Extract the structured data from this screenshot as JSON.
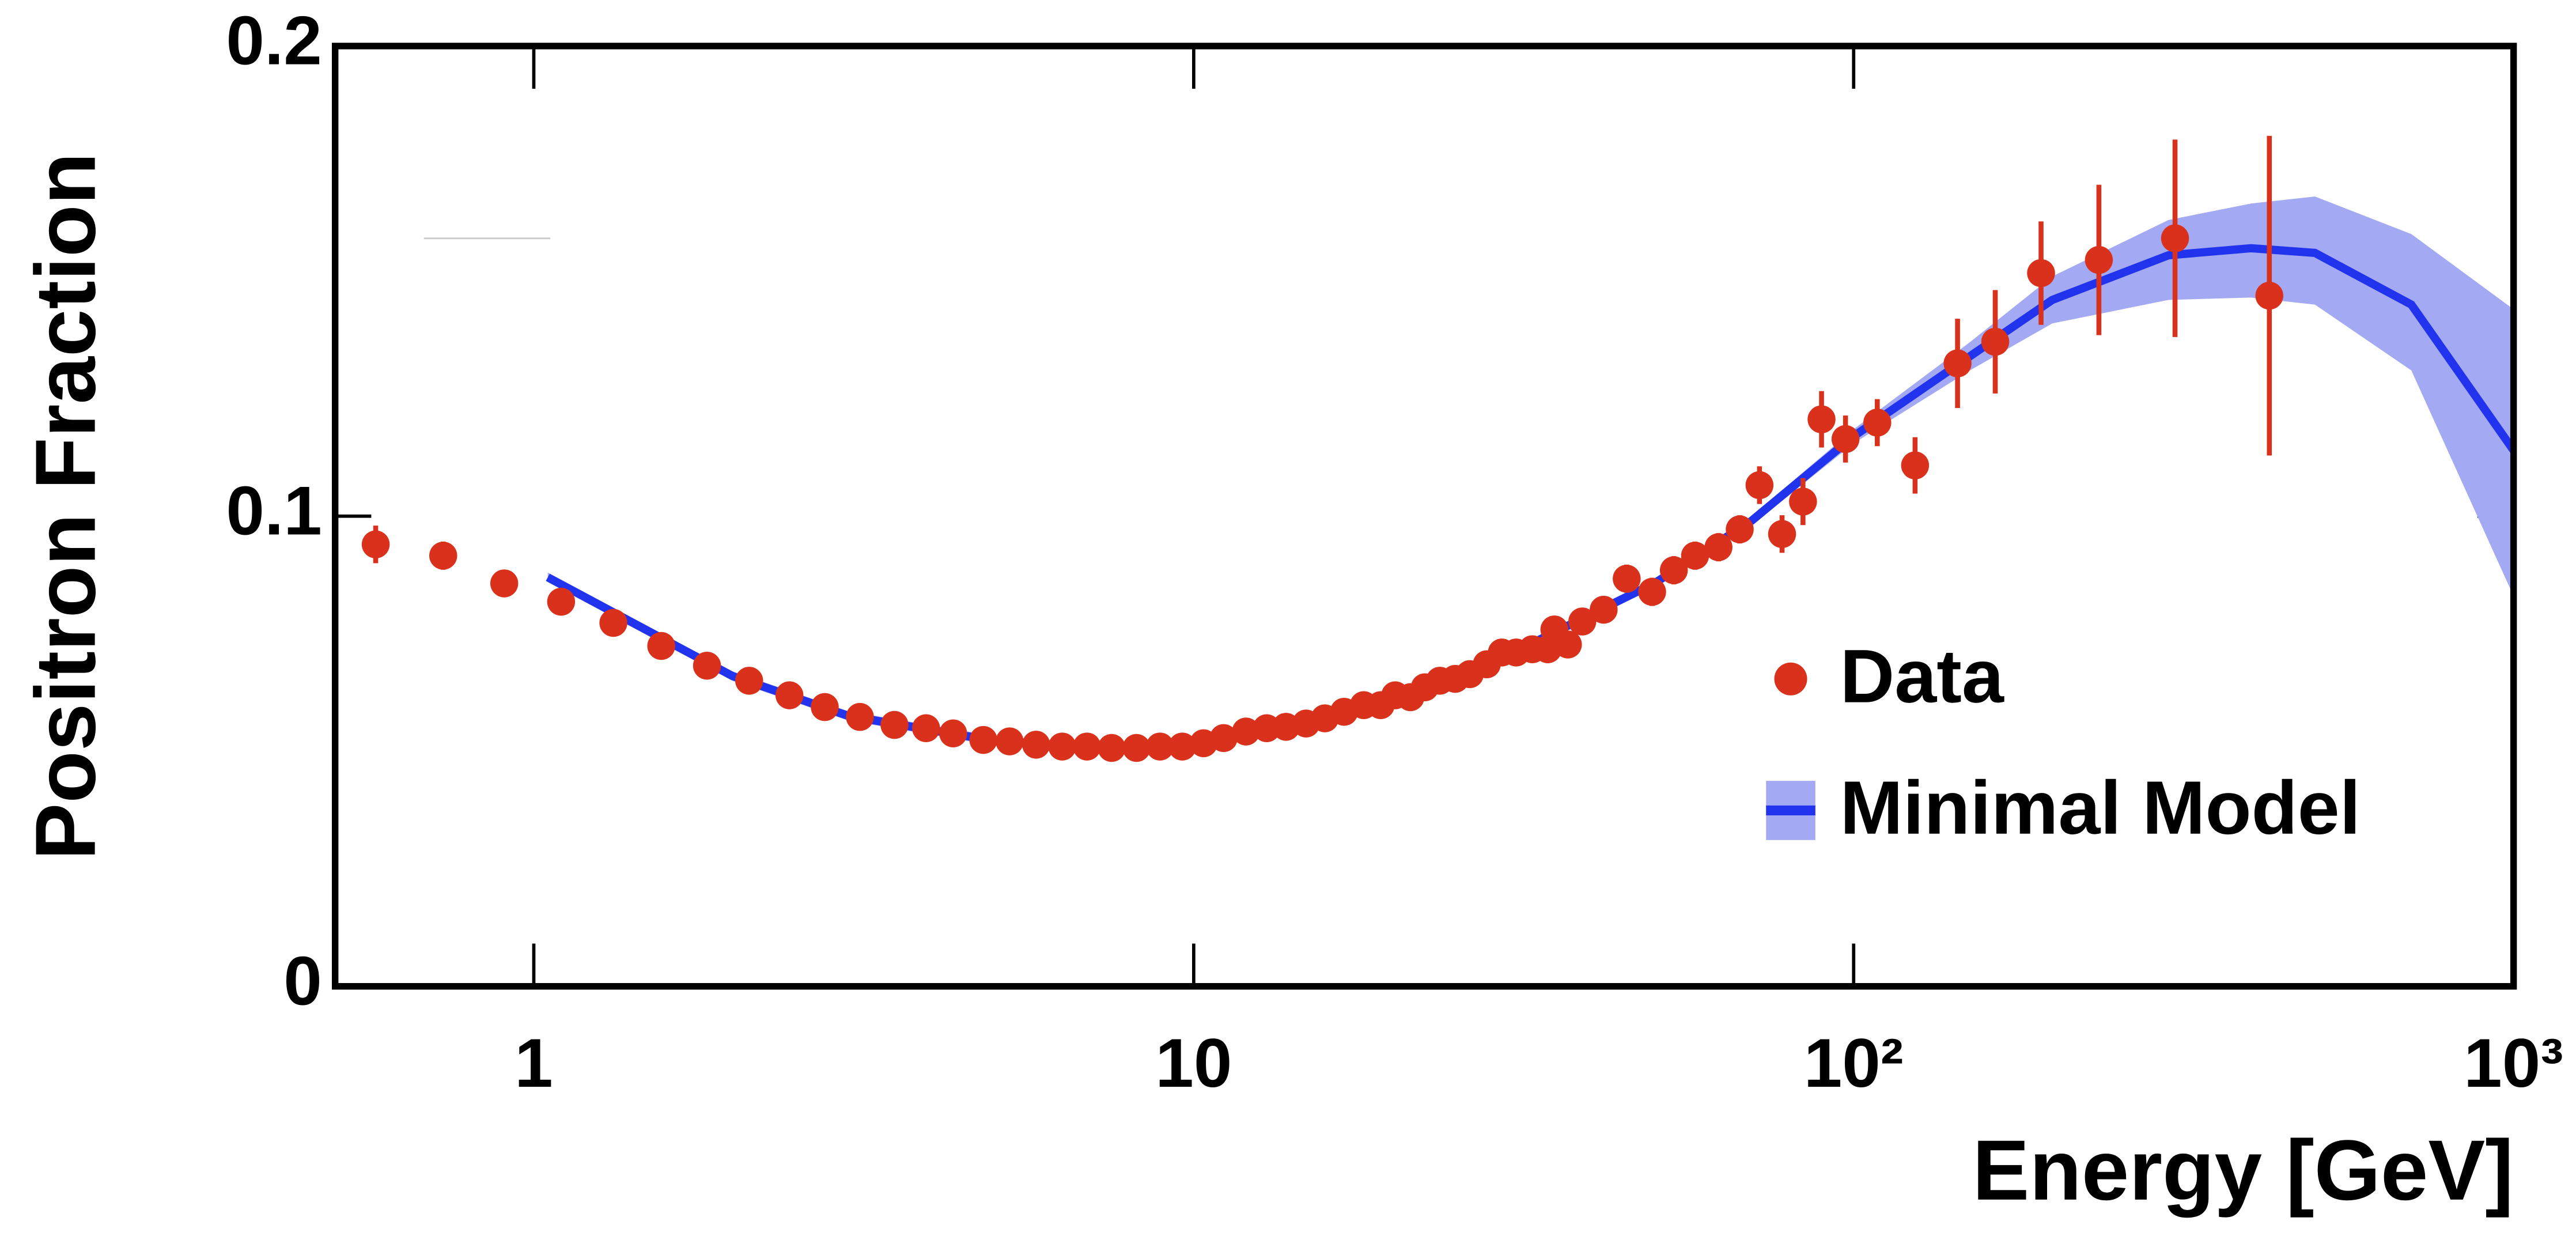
{
  "chart_data": {
    "type": "scatter",
    "xlabel": "Energy [GeV]",
    "ylabel": "Positron Fraction",
    "xscale": "log",
    "xlim": [
      0.5,
      1000
    ],
    "ylim": [
      0,
      0.2
    ],
    "xticks": [
      1,
      10,
      {
        "value": 100,
        "label": "10²"
      },
      {
        "value": 1000,
        "label": "10³"
      }
    ],
    "yticks": [
      0,
      0.1,
      0.2
    ],
    "legend": "lower right",
    "series": [
      {
        "name": "Data",
        "type": "scatter",
        "color": "#d9311b",
        "x": [
          0.576,
          0.729,
          0.902,
          1.1,
          1.32,
          1.56,
          1.83,
          2.12,
          2.44,
          2.76,
          3.12,
          3.52,
          3.93,
          4.32,
          4.8,
          5.26,
          5.77,
          6.32,
          6.89,
          7.51,
          8.19,
          8.89,
          9.61,
          10.35,
          11.1,
          12.0,
          12.9,
          13.8,
          14.8,
          15.8,
          16.9,
          18.1,
          19.2,
          20.2,
          21.3,
          22.4,
          23.6,
          24.9,
          26.2,
          27.8,
          29.3,
          30.8,
          32.6,
          34.4,
          35.2,
          36.9,
          38.8,
          41.8,
          45.3,
          49.5,
          53.4,
          57.5,
          62.4,
          67.2,
          72.0,
          77.9,
          83.8,
          89.4,
          97.2,
          108.6,
          123.9,
          143.7,
          163.9,
          192.3,
          235.3,
          306.9,
          426.5
        ],
        "values": [
          0.094,
          0.0916,
          0.0857,
          0.0818,
          0.0773,
          0.0724,
          0.0682,
          0.065,
          0.0619,
          0.0594,
          0.0573,
          0.0556,
          0.0549,
          0.0538,
          0.0524,
          0.0521,
          0.0514,
          0.051,
          0.051,
          0.0507,
          0.0507,
          0.051,
          0.051,
          0.0517,
          0.0528,
          0.0542,
          0.0549,
          0.0552,
          0.0559,
          0.057,
          0.0584,
          0.0598,
          0.0598,
          0.0619,
          0.0615,
          0.0636,
          0.065,
          0.0654,
          0.0664,
          0.0685,
          0.071,
          0.071,
          0.0717,
          0.0717,
          0.0759,
          0.0727,
          0.0776,
          0.0801,
          0.0867,
          0.0839,
          0.0885,
          0.0916,
          0.0934,
          0.0972,
          0.1066,
          0.0962,
          0.1031,
          0.1206,
          0.1164,
          0.1199,
          0.1108,
          0.1325,
          0.1371,
          0.1517,
          0.1545,
          0.1591,
          0.1469
        ],
        "errors": [
          0.004,
          0.003,
          0.002,
          0.002,
          0.002,
          0.002,
          0.002,
          0.002,
          0.002,
          0.002,
          0.002,
          0.002,
          0.002,
          0.002,
          0.002,
          0.002,
          0.002,
          0.002,
          0.002,
          0.002,
          0.002,
          0.002,
          0.002,
          0.002,
          0.002,
          0.002,
          0.002,
          0.002,
          0.002,
          0.002,
          0.002,
          0.002,
          0.002,
          0.002,
          0.002,
          0.002,
          0.002,
          0.002,
          0.002,
          0.002,
          0.002,
          0.002,
          0.002,
          0.002,
          0.002,
          0.002,
          0.002,
          0.002,
          0.003,
          0.003,
          0.003,
          0.003,
          0.003,
          0.003,
          0.004,
          0.004,
          0.005,
          0.006,
          0.005,
          0.005,
          0.006,
          0.0095,
          0.011,
          0.011,
          0.016,
          0.021,
          0.034
        ]
      },
      {
        "name": "Minimal Model",
        "type": "line",
        "color": "#2233ee",
        "band_color": "#a3aaf3",
        "x": [
          1.05,
          2,
          3,
          5,
          7,
          10,
          15,
          20,
          30,
          50,
          70,
          100,
          150,
          200,
          300,
          400,
          500,
          700,
          1000
        ],
        "values": [
          0.087,
          0.066,
          0.0575,
          0.0522,
          0.0508,
          0.0515,
          0.0558,
          0.0612,
          0.0705,
          0.0858,
          0.099,
          0.117,
          0.134,
          0.146,
          0.1555,
          0.157,
          0.156,
          0.145,
          0.114
        ],
        "band_lower": [
          0.086,
          0.065,
          0.0565,
          0.0512,
          0.0498,
          0.0505,
          0.0548,
          0.0602,
          0.0695,
          0.0848,
          0.098,
          0.1155,
          0.131,
          0.141,
          0.146,
          0.1465,
          0.145,
          0.131,
          0.083
        ],
        "band_upper": [
          0.088,
          0.067,
          0.0585,
          0.0532,
          0.0518,
          0.0525,
          0.0568,
          0.0622,
          0.0715,
          0.0868,
          0.1,
          0.1185,
          0.137,
          0.151,
          0.163,
          0.1665,
          0.168,
          0.16,
          0.144
        ]
      }
    ]
  }
}
